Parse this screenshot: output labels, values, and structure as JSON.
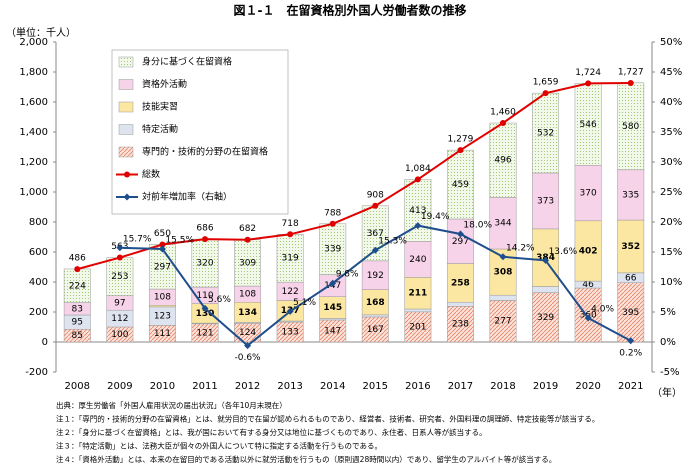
{
  "chart_data": {
    "type": "bar",
    "stacked": true,
    "title": "図１-１　在留資格別外国人労働者数の推移",
    "y_label": "（単位：千人）",
    "x_label": "（年）",
    "categories": [
      "2008",
      "2009",
      "2010",
      "2011",
      "2012",
      "2013",
      "2014",
      "2015",
      "2016",
      "2017",
      "2018",
      "2019",
      "2020",
      "2021"
    ],
    "ylim": [
      -200,
      2000
    ],
    "yticks": [
      {
        "value": -200,
        "label": "-200"
      },
      0,
      200,
      400,
      600,
      800,
      {
        "value": 1000,
        "label": "1,000"
      },
      {
        "value": 1200,
        "label": "1,200"
      },
      {
        "value": 1400,
        "label": "1,400"
      },
      {
        "value": 1600,
        "label": "1,600"
      },
      {
        "value": 1800,
        "label": "1,800"
      },
      {
        "value": 2000,
        "label": "2,000"
      }
    ],
    "y2lim": [
      -5,
      50
    ],
    "y2ticks": [
      {
        "value": -5,
        "label": "-5%"
      },
      {
        "value": 0,
        "label": "0%"
      },
      {
        "value": 5,
        "label": "5%"
      },
      {
        "value": 10,
        "label": "10%"
      },
      {
        "value": 15,
        "label": "15%"
      },
      {
        "value": 20,
        "label": "20%"
      },
      {
        "value": 25,
        "label": "25%"
      },
      {
        "value": 30,
        "label": "30%"
      },
      {
        "value": 35,
        "label": "35%"
      },
      {
        "value": 40,
        "label": "40%"
      },
      {
        "value": 45,
        "label": "45%"
      },
      {
        "value": 50,
        "label": "50%"
      }
    ],
    "series": [
      {
        "name": "専門的・技術的分野の在留資格",
        "type": "bar",
        "color": "#e8826a",
        "pattern": "hatch",
        "values": [
          85,
          100,
          111,
          121,
          124,
          133,
          147,
          167,
          201,
          238,
          277,
          329,
          360,
          395
        ]
      },
      {
        "name": "特定活動",
        "type": "bar",
        "color": "#dde4f0",
        "values": [
          95,
          112,
          123,
          5,
          7,
          7,
          10,
          14,
          19,
          27,
          35,
          41,
          46,
          66
        ],
        "value_labels": [
          "95",
          "112",
          "123",
          null,
          null,
          null,
          null,
          null,
          null,
          null,
          null,
          null,
          "46",
          "66"
        ]
      },
      {
        "name": "技能実習",
        "type": "bar",
        "color": "#fbe7a1",
        "bold_labels": true,
        "values": [
          null,
          null,
          11,
          130,
          134,
          137,
          145,
          168,
          211,
          258,
          308,
          384,
          402,
          352
        ],
        "value_labels": [
          null,
          null,
          null,
          "130",
          "134",
          "137",
          "145",
          "168",
          "211",
          "258",
          "308",
          "384",
          "402",
          "352"
        ]
      },
      {
        "name": "資格外活動",
        "type": "bar",
        "color": "#f7d3ea",
        "values": [
          83,
          97,
          108,
          110,
          108,
          122,
          147,
          192,
          240,
          297,
          344,
          373,
          370,
          335
        ]
      },
      {
        "name": "身分に基づく在留資格",
        "type": "bar",
        "color": "#8cbf5a",
        "pattern": "dots",
        "values": [
          224,
          253,
          297,
          320,
          309,
          319,
          339,
          367,
          413,
          459,
          496,
          532,
          546,
          580
        ]
      },
      {
        "name": "総数",
        "type": "line",
        "color": "#e00000",
        "values": [
          486,
          563,
          650,
          686,
          682,
          718,
          788,
          908,
          1084,
          1279,
          1460,
          1659,
          1724,
          1727
        ],
        "value_labels": [
          "486",
          "563",
          "650",
          "686",
          "682",
          "718",
          "788",
          "908",
          "1,084",
          "1,279",
          "1,460",
          "1,659",
          "1,724",
          "1,727"
        ]
      },
      {
        "name": "対前年増加率（右軸）",
        "type": "line",
        "axis": "y2",
        "color": "#1f4e8c",
        "values": [
          null,
          15.7,
          15.5,
          5.6,
          -0.6,
          5.1,
          9.8,
          15.3,
          19.4,
          18.0,
          14.2,
          13.6,
          4.0,
          0.2
        ],
        "value_labels": [
          null,
          "15.7%",
          "15.5%",
          "5.6%",
          "-0.6%",
          "5.1%",
          "9.8%",
          "15.3%",
          "19.4%",
          "18.0%",
          "14.2%",
          "13.6%",
          "4.0%",
          "0.2%"
        ]
      }
    ],
    "notes": [
      "出典：厚生労働省「外国人雇用状況の届出状況」（各年10月末現在）",
      "注１：「専門的・技術的分野の在留資格」とは、就労目的で在留が認められるものであり、経営者、技術者、研究者、外国料理の調理師、特定技能等が該当する。",
      "注２：「身分に基づく在留資格」とは、我が国において有する身分又は地位に基づくものであり、永住者、日系人等が該当する。",
      "注３：「特定活動」とは、法務大臣が個々の外国人について特に指定する活動を行うものである。",
      "注４：「資格外活動」とは、本来の在留目的である活動以外に就労活動を行うもの（原則週28時間以内）であり、留学生のアルバイト等が該当する。"
    ]
  }
}
